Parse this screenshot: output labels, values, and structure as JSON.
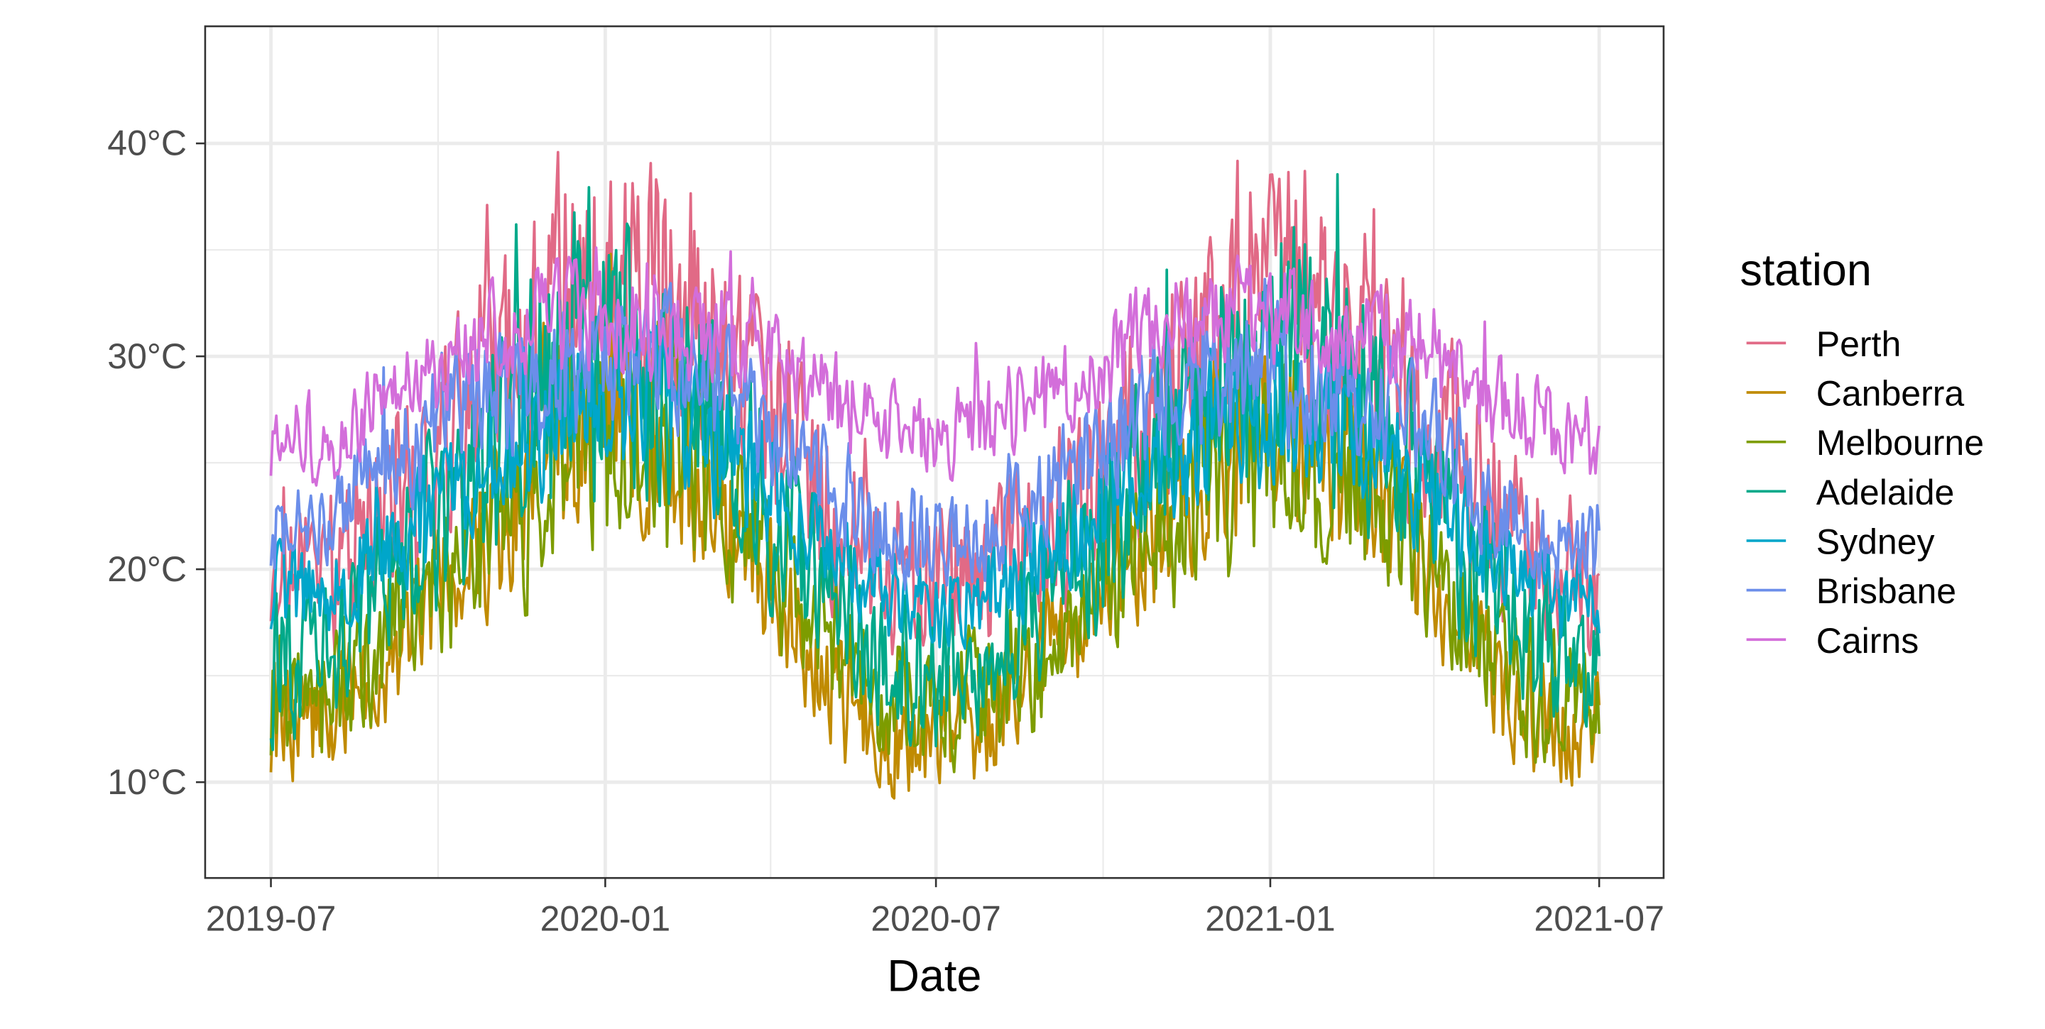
{
  "chart_data": {
    "type": "line",
    "title": "",
    "xlabel": "Date",
    "ylabel": "",
    "x_range": [
      "2019-07-01",
      "2021-07-01"
    ],
    "ylim": [
      5.5,
      45.5
    ],
    "x_ticks": [
      {
        "date": "2019-07-01",
        "label": "2019-07"
      },
      {
        "date": "2020-01-01",
        "label": "2020-01"
      },
      {
        "date": "2020-07-01",
        "label": "2020-07"
      },
      {
        "date": "2021-01-01",
        "label": "2021-01"
      },
      {
        "date": "2021-07-01",
        "label": "2021-07"
      }
    ],
    "x_minor_ticks": [
      "2019-10-01",
      "2020-04-01",
      "2020-10-01",
      "2021-04-01"
    ],
    "y_ticks": [
      {
        "value": 10,
        "label": "10°C"
      },
      {
        "value": 20,
        "label": "20°C"
      },
      {
        "value": 30,
        "label": "30°C"
      },
      {
        "value": 40,
        "label": "40°C"
      }
    ],
    "y_minor_ticks": [
      15,
      25,
      35
    ],
    "grid": true,
    "legend": {
      "title": "station",
      "position": "right"
    },
    "series": [
      {
        "name": "Perth",
        "color": "#E16A86",
        "points": [
          [
            "2019-07-01",
            21
          ],
          [
            "2019-08-01",
            20
          ],
          [
            "2019-09-01",
            23
          ],
          [
            "2019-10-01",
            25
          ],
          [
            "2019-11-01",
            29
          ],
          [
            "2019-12-01",
            32
          ],
          [
            "2020-01-01",
            33
          ],
          [
            "2020-02-01",
            33
          ],
          [
            "2020-03-01",
            31
          ],
          [
            "2020-04-01",
            28
          ],
          [
            "2020-05-01",
            23
          ],
          [
            "2020-06-01",
            20
          ],
          [
            "2020-07-01",
            19
          ],
          [
            "2020-08-01",
            20
          ],
          [
            "2020-09-01",
            22
          ],
          [
            "2020-10-01",
            24
          ],
          [
            "2020-11-01",
            28
          ],
          [
            "2020-12-01",
            32
          ],
          [
            "2021-01-01",
            33
          ],
          [
            "2021-02-01",
            32
          ],
          [
            "2021-03-01",
            30
          ],
          [
            "2021-04-01",
            27
          ],
          [
            "2021-05-01",
            23
          ],
          [
            "2021-06-01",
            20
          ],
          [
            "2021-07-01",
            18
          ]
        ]
      },
      {
        "name": "Canberra",
        "color": "#C08B00",
        "points": [
          [
            "2019-07-01",
            13
          ],
          [
            "2019-08-01",
            13
          ],
          [
            "2019-09-01",
            15
          ],
          [
            "2019-10-01",
            19
          ],
          [
            "2019-11-01",
            22
          ],
          [
            "2019-12-01",
            26
          ],
          [
            "2020-01-01",
            27
          ],
          [
            "2020-02-01",
            26
          ],
          [
            "2020-03-01",
            23
          ],
          [
            "2020-04-01",
            19
          ],
          [
            "2020-05-01",
            15
          ],
          [
            "2020-06-01",
            12
          ],
          [
            "2020-07-01",
            12
          ],
          [
            "2020-08-01",
            13
          ],
          [
            "2020-09-01",
            16
          ],
          [
            "2020-10-01",
            19
          ],
          [
            "2020-11-01",
            22
          ],
          [
            "2020-12-01",
            25
          ],
          [
            "2021-01-01",
            26
          ],
          [
            "2021-02-01",
            25
          ],
          [
            "2021-03-01",
            23
          ],
          [
            "2021-04-01",
            19
          ],
          [
            "2021-05-01",
            15
          ],
          [
            "2021-06-01",
            13
          ],
          [
            "2021-07-01",
            13
          ]
        ]
      },
      {
        "name": "Melbourne",
        "color": "#7D9C00",
        "points": [
          [
            "2019-07-01",
            14
          ],
          [
            "2019-08-01",
            14
          ],
          [
            "2019-09-01",
            17
          ],
          [
            "2019-10-01",
            19
          ],
          [
            "2019-11-01",
            21
          ],
          [
            "2019-12-01",
            24
          ],
          [
            "2020-01-01",
            26
          ],
          [
            "2020-02-01",
            26
          ],
          [
            "2020-03-01",
            24
          ],
          [
            "2020-04-01",
            20
          ],
          [
            "2020-05-01",
            17
          ],
          [
            "2020-06-01",
            14
          ],
          [
            "2020-07-01",
            14
          ],
          [
            "2020-08-01",
            14
          ],
          [
            "2020-09-01",
            16
          ],
          [
            "2020-10-01",
            19
          ],
          [
            "2020-11-01",
            22
          ],
          [
            "2020-12-01",
            25
          ],
          [
            "2021-01-01",
            25
          ],
          [
            "2021-02-01",
            25
          ],
          [
            "2021-03-01",
            23
          ],
          [
            "2021-04-01",
            20
          ],
          [
            "2021-05-01",
            16
          ],
          [
            "2021-06-01",
            14
          ],
          [
            "2021-07-01",
            14
          ]
        ]
      },
      {
        "name": "Adelaide",
        "color": "#00A98A",
        "points": [
          [
            "2019-07-01",
            15
          ],
          [
            "2019-08-01",
            16
          ],
          [
            "2019-09-01",
            19
          ],
          [
            "2019-10-01",
            22
          ],
          [
            "2019-11-01",
            26
          ],
          [
            "2019-12-01",
            29
          ],
          [
            "2020-01-01",
            30
          ],
          [
            "2020-02-01",
            30
          ],
          [
            "2020-03-01",
            27
          ],
          [
            "2020-04-01",
            23
          ],
          [
            "2020-05-01",
            19
          ],
          [
            "2020-06-01",
            16
          ],
          [
            "2020-07-01",
            15
          ],
          [
            "2020-08-01",
            16
          ],
          [
            "2020-09-01",
            19
          ],
          [
            "2020-10-01",
            22
          ],
          [
            "2020-11-01",
            26
          ],
          [
            "2020-12-01",
            29
          ],
          [
            "2021-01-01",
            30
          ],
          [
            "2021-02-01",
            29
          ],
          [
            "2021-03-01",
            27
          ],
          [
            "2021-04-01",
            23
          ],
          [
            "2021-05-01",
            19
          ],
          [
            "2021-06-01",
            16
          ],
          [
            "2021-07-01",
            15
          ]
        ]
      },
      {
        "name": "Sydney",
        "color": "#00A6CA",
        "points": [
          [
            "2019-07-01",
            19
          ],
          [
            "2019-08-01",
            19
          ],
          [
            "2019-09-01",
            21
          ],
          [
            "2019-10-01",
            23
          ],
          [
            "2019-11-01",
            25
          ],
          [
            "2019-12-01",
            27
          ],
          [
            "2020-01-01",
            28
          ],
          [
            "2020-02-01",
            28
          ],
          [
            "2020-03-01",
            26
          ],
          [
            "2020-04-01",
            24
          ],
          [
            "2020-05-01",
            21
          ],
          [
            "2020-06-01",
            19
          ],
          [
            "2020-07-01",
            18
          ],
          [
            "2020-08-01",
            19
          ],
          [
            "2020-09-01",
            21
          ],
          [
            "2020-10-01",
            23
          ],
          [
            "2020-11-01",
            25
          ],
          [
            "2020-12-01",
            27
          ],
          [
            "2021-01-01",
            27
          ],
          [
            "2021-02-01",
            27
          ],
          [
            "2021-03-01",
            26
          ],
          [
            "2021-04-01",
            23
          ],
          [
            "2021-05-01",
            21
          ],
          [
            "2021-06-01",
            19
          ],
          [
            "2021-07-01",
            18
          ]
        ]
      },
      {
        "name": "Brisbane",
        "color": "#6B8EEA",
        "points": [
          [
            "2019-07-01",
            22
          ],
          [
            "2019-08-01",
            22
          ],
          [
            "2019-09-01",
            25
          ],
          [
            "2019-10-01",
            27
          ],
          [
            "2019-11-01",
            28
          ],
          [
            "2019-12-01",
            29
          ],
          [
            "2020-01-01",
            30
          ],
          [
            "2020-02-01",
            30
          ],
          [
            "2020-03-01",
            29
          ],
          [
            "2020-04-01",
            27
          ],
          [
            "2020-05-01",
            24
          ],
          [
            "2020-06-01",
            22
          ],
          [
            "2020-07-01",
            21
          ],
          [
            "2020-08-01",
            22
          ],
          [
            "2020-09-01",
            24
          ],
          [
            "2020-10-01",
            26
          ],
          [
            "2020-11-01",
            28
          ],
          [
            "2020-12-01",
            29
          ],
          [
            "2021-01-01",
            29
          ],
          [
            "2021-02-01",
            29
          ],
          [
            "2021-03-01",
            28
          ],
          [
            "2021-04-01",
            26
          ],
          [
            "2021-05-01",
            23
          ],
          [
            "2021-06-01",
            21
          ],
          [
            "2021-07-01",
            21
          ]
        ]
      },
      {
        "name": "Cairns",
        "color": "#D36EDA",
        "points": [
          [
            "2019-07-01",
            26
          ],
          [
            "2019-08-01",
            26
          ],
          [
            "2019-09-01",
            28
          ],
          [
            "2019-10-01",
            29
          ],
          [
            "2019-11-01",
            31
          ],
          [
            "2019-12-01",
            32
          ],
          [
            "2020-01-01",
            32
          ],
          [
            "2020-02-01",
            31
          ],
          [
            "2020-03-01",
            31
          ],
          [
            "2020-04-01",
            30
          ],
          [
            "2020-05-01",
            28
          ],
          [
            "2020-06-01",
            27
          ],
          [
            "2020-07-01",
            26
          ],
          [
            "2020-08-01",
            27
          ],
          [
            "2020-09-01",
            28
          ],
          [
            "2020-10-01",
            30
          ],
          [
            "2020-11-01",
            31
          ],
          [
            "2020-12-01",
            32
          ],
          [
            "2021-01-01",
            32
          ],
          [
            "2021-02-01",
            31
          ],
          [
            "2021-03-01",
            31
          ],
          [
            "2021-04-01",
            30
          ],
          [
            "2021-05-01",
            28
          ],
          [
            "2021-06-01",
            27
          ],
          [
            "2021-07-01",
            26
          ]
        ]
      }
    ]
  }
}
